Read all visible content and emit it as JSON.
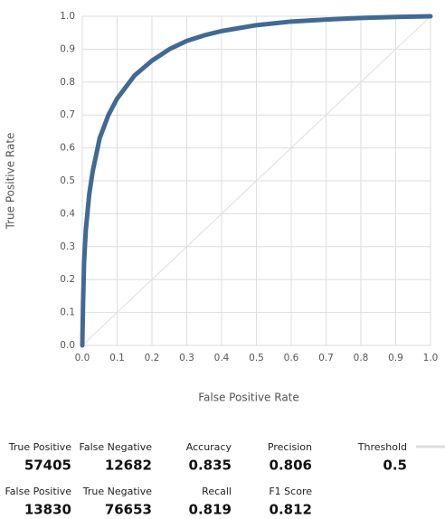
{
  "chart_data": {
    "type": "line",
    "x_label": "False Positive Rate",
    "y_label": "True Positive Rate",
    "xlim": [
      0,
      1
    ],
    "ylim": [
      0,
      1
    ],
    "xticks": [
      {
        "value": 0,
        "label": "0.0"
      },
      0.1,
      0.2,
      0.3,
      0.4,
      0.5,
      0.6,
      0.7,
      0.8,
      0.9,
      {
        "value": 1,
        "label": "1.0"
      }
    ],
    "yticks": [
      {
        "value": 0,
        "label": "0.0"
      },
      0.1,
      0.2,
      0.3,
      0.4,
      0.5,
      0.6,
      0.7,
      0.8,
      0.9,
      {
        "value": 1,
        "label": "1.0"
      }
    ],
    "grid": true,
    "series": [
      {
        "color": "#406a94",
        "x": [
          0,
          0.002,
          0.005,
          0.01,
          0.02,
          0.03,
          0.05,
          0.075,
          0.1,
          0.15,
          0.2,
          0.25,
          0.3,
          0.35,
          0.4,
          0.5,
          0.6,
          0.7,
          0.8,
          0.9,
          1
        ],
        "values": [
          0,
          0.12,
          0.25,
          0.35,
          0.46,
          0.53,
          0.63,
          0.7,
          0.75,
          0.82,
          0.865,
          0.9,
          0.925,
          0.942,
          0.955,
          0.973,
          0.984,
          0.99,
          0.995,
          0.998,
          1
        ]
      },
      {
        "color": "#e2e2e2",
        "x": [
          0,
          1
        ],
        "values": [
          0,
          1
        ]
      }
    ]
  },
  "stats": [
    {
      "label": "True Positive",
      "value": 57405
    },
    {
      "label": "False Negative",
      "value": 12682
    },
    {
      "label": "Accuracy",
      "value": 0.835
    },
    {
      "label": "Precision",
      "value": 0.806
    },
    {
      "label": "Threshold",
      "value": 0.5
    },
    {
      "label": "False Positive",
      "value": 13830
    },
    {
      "label": "True Negative",
      "value": 76653
    },
    {
      "label": "Recall",
      "value": 0.819
    },
    {
      "label": "F1 Score",
      "value": 0.812
    }
  ]
}
